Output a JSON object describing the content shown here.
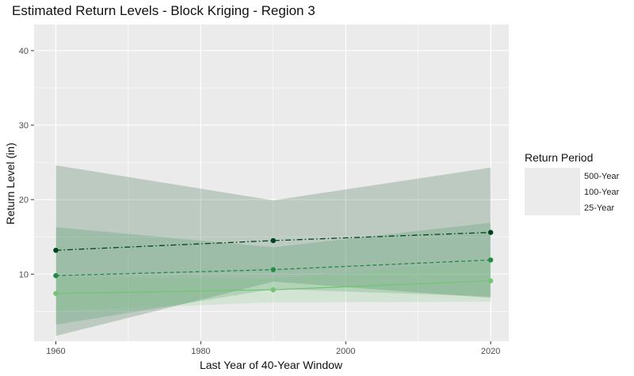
{
  "chart_data": {
    "type": "line",
    "title": "Estimated Return Levels - Block Kriging - Region 3",
    "xlabel": "Last Year of 40-Year Window",
    "ylabel": "Return Level (in)",
    "xlim": [
      1957,
      2022.5
    ],
    "ylim": [
      1,
      43.5
    ],
    "x_ticks": [
      1960,
      1980,
      2000,
      2020
    ],
    "y_ticks": [
      10,
      20,
      30,
      40
    ],
    "grid": true,
    "x": [
      1960,
      1990,
      2020
    ],
    "legend": {
      "title": "Return Period",
      "placement": "right"
    },
    "series": [
      {
        "name": "500-Year",
        "values": [
          13.2,
          14.5,
          15.6
        ],
        "lower": [
          1.7,
          9.0,
          6.8
        ],
        "upper": [
          24.6,
          19.9,
          24.3
        ],
        "color": "#00441b",
        "band_color": "#00441b",
        "dash": "7,3,1.5,3"
      },
      {
        "name": "100-Year",
        "values": [
          9.8,
          10.6,
          11.9
        ],
        "lower": [
          3.2,
          8.0,
          7.0
        ],
        "upper": [
          16.3,
          13.6,
          16.9
        ],
        "color": "#238b45",
        "band_color": "#238b45",
        "dash": "5,3"
      },
      {
        "name": "25-Year",
        "values": [
          7.4,
          7.9,
          9.1
        ],
        "lower": [
          5.1,
          6.2,
          6.3
        ],
        "upper": [
          9.6,
          9.4,
          11.8
        ],
        "color": "#74c476",
        "band_color": "#74c476",
        "dash": ""
      }
    ]
  }
}
